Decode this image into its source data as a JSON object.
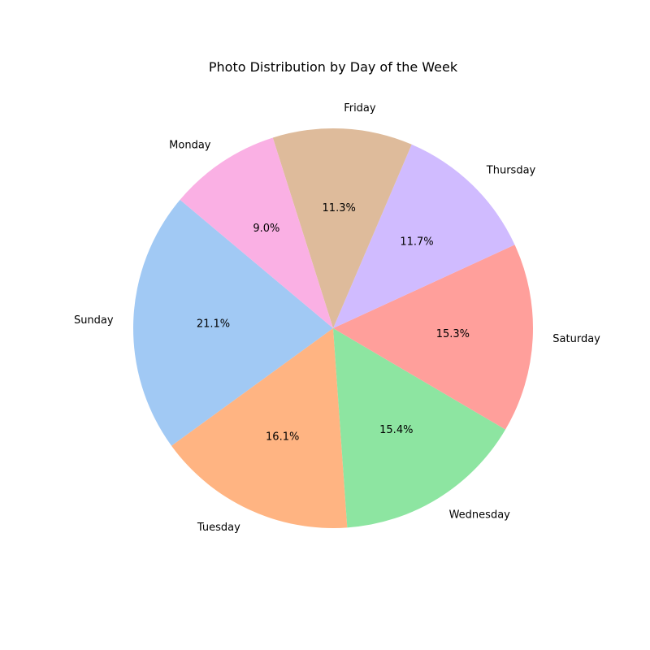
{
  "chart_data": {
    "type": "pie",
    "title": "Photo Distribution by Day of the Week",
    "start_angle_deg": 140,
    "direction": "counterclockwise",
    "slices": [
      {
        "label": "Sunday",
        "value": 21.1,
        "pct_label": "21.1%",
        "color": "#a1c9f4"
      },
      {
        "label": "Tuesday",
        "value": 16.1,
        "pct_label": "16.1%",
        "color": "#ffb482"
      },
      {
        "label": "Wednesday",
        "value": 15.4,
        "pct_label": "15.4%",
        "color": "#8de5a1"
      },
      {
        "label": "Saturday",
        "value": 15.3,
        "pct_label": "15.3%",
        "color": "#ff9f9b"
      },
      {
        "label": "Thursday",
        "value": 11.7,
        "pct_label": "11.7%",
        "color": "#d0bbff"
      },
      {
        "label": "Friday",
        "value": 11.3,
        "pct_label": "11.3%",
        "color": "#debb9b"
      },
      {
        "label": "Monday",
        "value": 9.0,
        "pct_label": "9.0%",
        "color": "#fab0e4"
      }
    ]
  }
}
